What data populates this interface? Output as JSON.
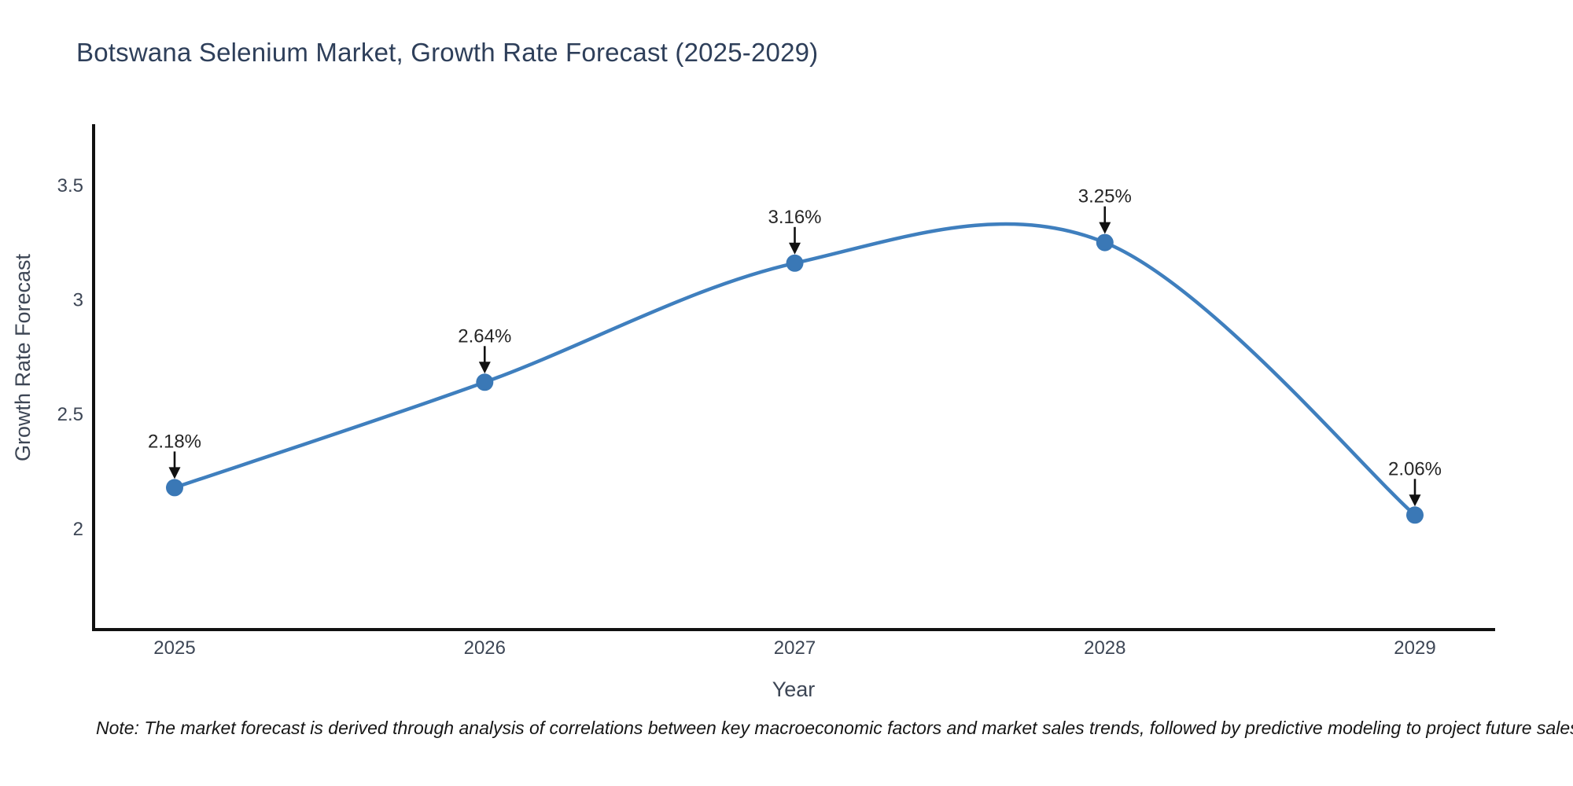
{
  "title": "Botswana Selenium Market, Growth Rate Forecast (2025-2029)",
  "note": "Note: The market forecast is derived through analysis of correlations between key macroeconomic factors and market sales trends, followed by predictive modeling to project future sales",
  "chart_data": {
    "type": "line",
    "curve": "spline",
    "title": "Botswana Selenium Market, Growth Rate Forecast (2025-2029)",
    "xlabel": "Year",
    "ylabel": "Growth Rate Forecast",
    "categories": [
      "2025",
      "2026",
      "2027",
      "2028",
      "2029"
    ],
    "series": [
      {
        "name": "Growth Rate Forecast",
        "values": [
          2.18,
          2.64,
          3.16,
          3.25,
          2.06
        ]
      }
    ],
    "point_labels": [
      "2.18%",
      "2.64%",
      "3.16%",
      "3.25%",
      "2.06%"
    ],
    "yticks": [
      "2",
      "2.5",
      "3",
      "3.5"
    ],
    "ytick_values": [
      2,
      2.5,
      3,
      3.5
    ],
    "ylim": [
      1.56,
      3.76
    ],
    "grid": false,
    "legend": "none",
    "annotation_style": "arrow-down-to-point",
    "colors": {
      "line": "#3f7fbe",
      "marker": "#3a78b6",
      "axis": "#111111",
      "tick_label": "#3d4655",
      "axis_title": "#3d4655",
      "title": "#2e3f5a",
      "annotation_text": "#262626",
      "annotation_arrow": "#111111",
      "note_text": "#161616"
    }
  }
}
